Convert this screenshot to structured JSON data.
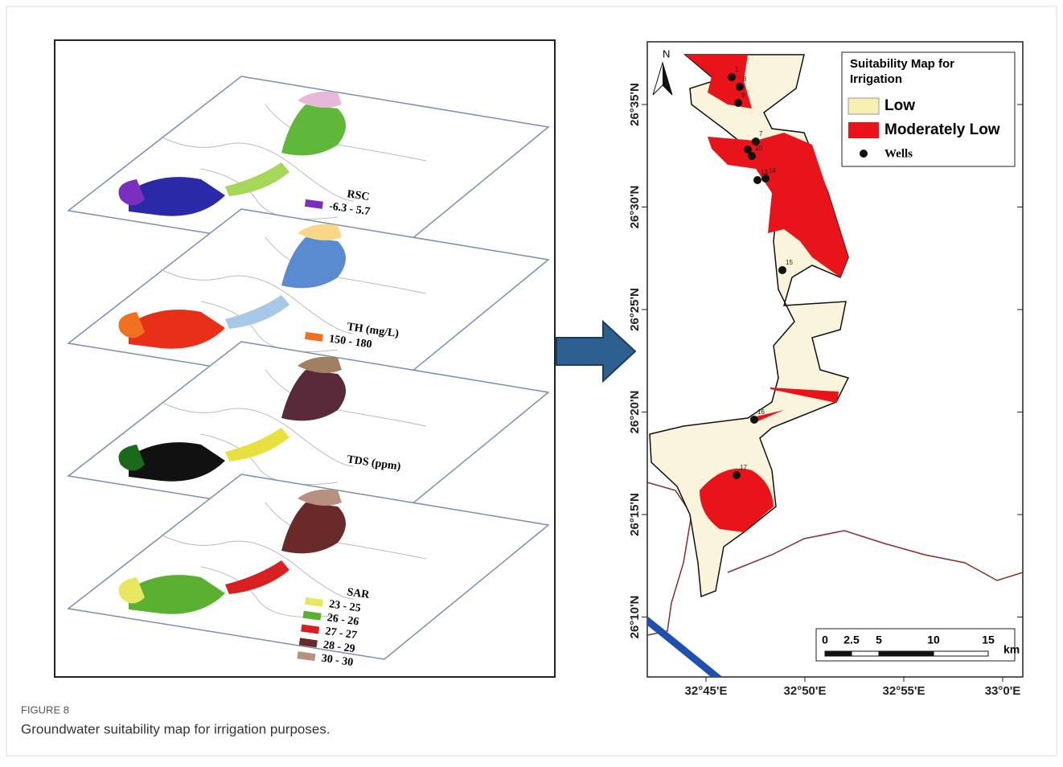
{
  "figure": {
    "label": "FIGURE 8",
    "caption": "Groundwater suitability map for irrigation purposes."
  },
  "left_panel": {
    "layers": [
      {
        "title": "RSC",
        "classes": [
          "-6.3 - 5.7"
        ]
      },
      {
        "title": "TH (mg/L)",
        "classes": [
          "150 - 180"
        ]
      },
      {
        "title": "TDS (ppm)",
        "classes": []
      },
      {
        "title": "SAR",
        "classes": [
          "23 - 25",
          "26 - 26",
          "27 - 27",
          "28 - 29",
          "30 - 30"
        ]
      }
    ]
  },
  "right_map": {
    "north": "N",
    "legend": {
      "title": "Suitability Map for Irrigation",
      "items": [
        "Low",
        "Moderately Low",
        "Wells"
      ]
    },
    "y_labels": [
      "26°35'N",
      "26°30'N",
      "26°25'N",
      "26°20'N",
      "26°15'N",
      "26°10'N"
    ],
    "x_labels": [
      "32°45'E",
      "32°50'E",
      "32°55'E",
      "33°0'E"
    ],
    "scale": {
      "ticks": [
        "0",
        "2.5",
        "5",
        "10",
        "15"
      ],
      "unit": "km"
    },
    "wells": [
      "1",
      "8",
      "9",
      "7",
      "11",
      "10",
      "13",
      "14",
      "15",
      "16",
      "17"
    ]
  }
}
